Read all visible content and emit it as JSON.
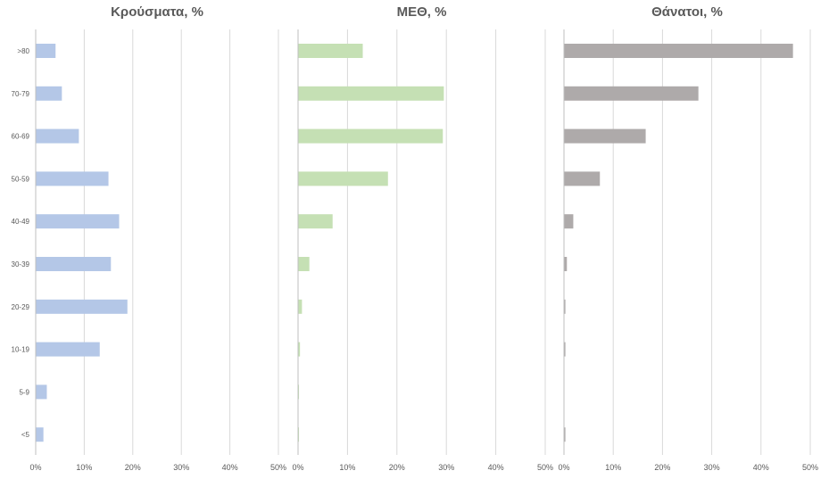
{
  "chart_data": [
    {
      "type": "bar",
      "orientation": "horizontal",
      "title": "Κρούσματα, %",
      "categories": [
        ">80",
        "70-79",
        "60-69",
        "50-59",
        "40-49",
        "30-39",
        "20-29",
        "10-19",
        "5-9",
        "<5"
      ],
      "values": [
        4.0,
        5.3,
        8.8,
        14.9,
        17.1,
        15.4,
        18.8,
        13.1,
        2.2,
        1.5
      ],
      "xlim": [
        0,
        50
      ],
      "xticks": [
        "0%",
        "10%",
        "20%",
        "30%",
        "40%",
        "50%"
      ],
      "grid": true,
      "color": "#b4c7e7"
    },
    {
      "type": "bar",
      "orientation": "horizontal",
      "title": "ΜΕΘ, %",
      "categories": [
        ">80",
        "70-79",
        "60-69",
        "50-59",
        "40-49",
        "30-39",
        "20-29",
        "10-19",
        "5-9",
        "<5"
      ],
      "values": [
        13.0,
        29.4,
        29.2,
        18.1,
        6.9,
        2.2,
        0.7,
        0.3,
        0.1,
        0.1
      ],
      "xlim": [
        0,
        50
      ],
      "xticks": [
        "0%",
        "10%",
        "20%",
        "30%",
        "40%",
        "50%"
      ],
      "grid": true,
      "color": "#c5e0b4"
    },
    {
      "type": "bar",
      "orientation": "horizontal",
      "title": "Θάνατοι, %",
      "categories": [
        ">80",
        "70-79",
        "60-69",
        "50-59",
        "40-49",
        "30-39",
        "20-29",
        "10-19",
        "5-9",
        "<5"
      ],
      "values": [
        46.4,
        27.2,
        16.5,
        7.2,
        1.8,
        0.5,
        0.2,
        0.2,
        0.0,
        0.2
      ],
      "xlim": [
        0,
        50
      ],
      "xticks": [
        "0%",
        "10%",
        "20%",
        "30%",
        "40%",
        "50%"
      ],
      "grid": true,
      "color": "#aeaaaa"
    }
  ]
}
